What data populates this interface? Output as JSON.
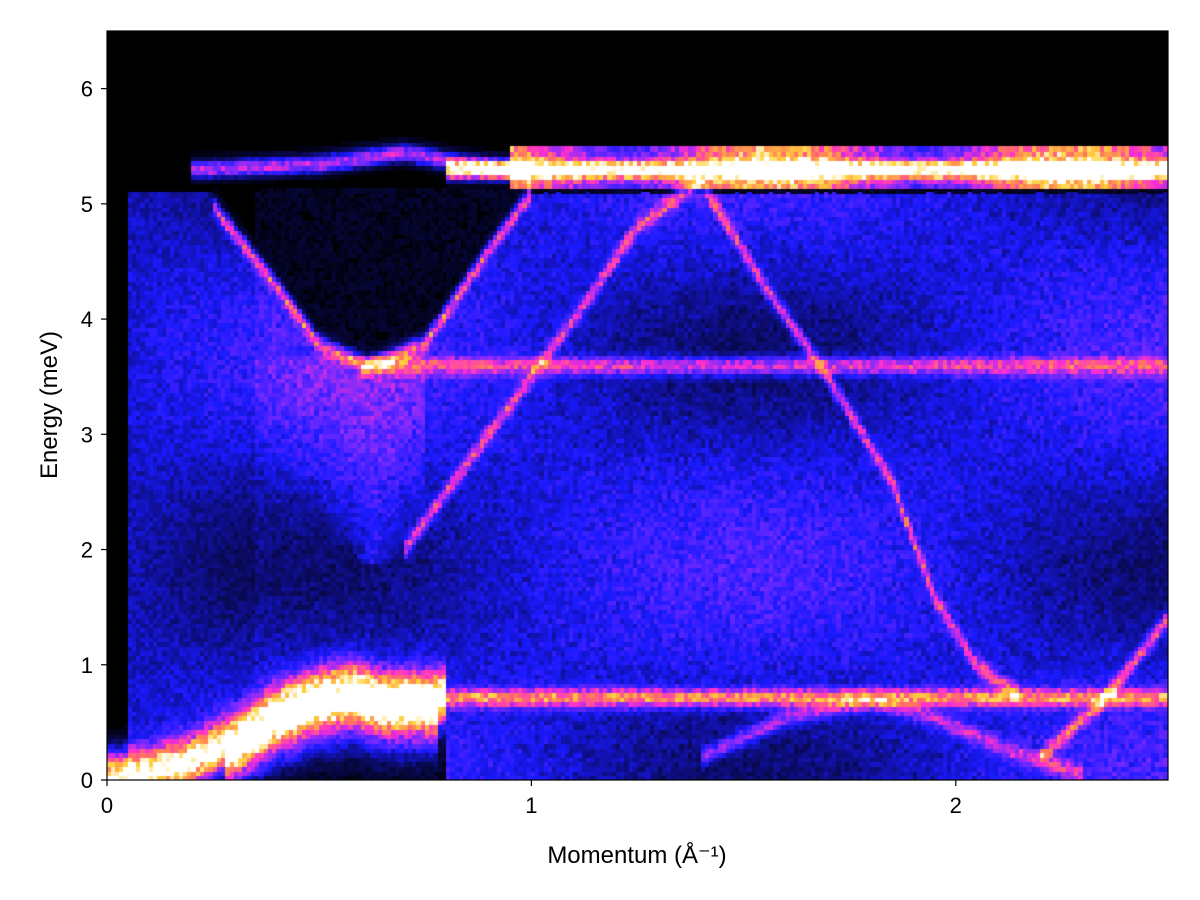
{
  "chart_data": {
    "type": "heatmap",
    "title": "",
    "xlabel": "Momentum (Å⁻¹)",
    "ylabel": "Energy (meV)",
    "xlim": [
      0,
      2.5
    ],
    "ylim": [
      0,
      6.5
    ],
    "x_ticks": [
      {
        "value": 0,
        "label": "0"
      },
      {
        "value": 1,
        "label": "1"
      },
      {
        "value": 2,
        "label": "2"
      }
    ],
    "y_ticks": [
      {
        "value": 0,
        "label": "0"
      },
      {
        "value": 1,
        "label": "1"
      },
      {
        "value": 2,
        "label": "2"
      },
      {
        "value": 3,
        "label": "3"
      },
      {
        "value": 4,
        "label": "4"
      },
      {
        "value": 5,
        "label": "5"
      },
      {
        "value": 6,
        "label": "6"
      }
    ],
    "grid": false,
    "colormap": [
      "#000000",
      "#0a0a55",
      "#1a1aff",
      "#7b2bff",
      "#ff2fd0",
      "#ff7a5a",
      "#ffd23c",
      "#ffffff"
    ],
    "features": [
      {
        "name": "acoustic-branch",
        "points": [
          [
            0.0,
            0.02
          ],
          [
            0.1,
            0.05
          ],
          [
            0.2,
            0.15
          ],
          [
            0.3,
            0.35
          ],
          [
            0.4,
            0.6
          ],
          [
            0.5,
            0.75
          ],
          [
            0.58,
            0.8
          ],
          [
            0.65,
            0.72
          ],
          [
            0.8,
            0.72
          ]
        ],
        "intensity": 1.0
      },
      {
        "name": "flat-band-low",
        "points": [
          [
            0.6,
            0.72
          ],
          [
            2.5,
            0.72
          ]
        ],
        "intensity": 0.55
      },
      {
        "name": "flat-band-top",
        "points": [
          [
            0.8,
            5.3
          ],
          [
            2.5,
            5.3
          ]
        ],
        "intensity": 1.0
      },
      {
        "name": "upper-dispersive",
        "points": [
          [
            0.2,
            5.3
          ],
          [
            0.5,
            5.35
          ],
          [
            0.7,
            5.45
          ],
          [
            0.85,
            5.35
          ],
          [
            1.0,
            5.28
          ]
        ],
        "intensity": 0.4
      },
      {
        "name": "lower-edge-of-top",
        "points": [
          [
            0.25,
            5.0
          ],
          [
            0.4,
            4.3
          ],
          [
            0.5,
            3.8
          ],
          [
            0.62,
            3.6
          ],
          [
            0.75,
            3.8
          ],
          [
            0.9,
            4.6
          ],
          [
            1.0,
            5.1
          ]
        ],
        "intensity": 0.4
      },
      {
        "name": "mid-flat-3p6",
        "points": [
          [
            0.6,
            3.6
          ],
          [
            2.5,
            3.6
          ]
        ],
        "intensity": 0.35
      },
      {
        "name": "diag-rising",
        "points": [
          [
            0.7,
            2.0
          ],
          [
            0.9,
            3.0
          ],
          [
            1.0,
            3.5
          ],
          [
            1.1,
            4.0
          ],
          [
            1.25,
            4.8
          ],
          [
            1.4,
            5.2
          ]
        ],
        "intensity": 0.35
      },
      {
        "name": "diag-falling",
        "points": [
          [
            1.4,
            5.2
          ],
          [
            1.55,
            4.3
          ],
          [
            1.7,
            3.5
          ],
          [
            1.85,
            2.6
          ],
          [
            1.95,
            1.6
          ],
          [
            2.05,
            1.0
          ],
          [
            2.15,
            0.75
          ]
        ],
        "intensity": 0.35
      },
      {
        "name": "low-hump",
        "points": [
          [
            1.4,
            0.2
          ],
          [
            1.6,
            0.55
          ],
          [
            1.8,
            0.7
          ],
          [
            1.95,
            0.55
          ],
          [
            2.1,
            0.3
          ],
          [
            2.3,
            0.05
          ]
        ],
        "intensity": 0.25
      },
      {
        "name": "low-right-rise",
        "points": [
          [
            2.2,
            0.2
          ],
          [
            2.35,
            0.7
          ],
          [
            2.5,
            1.4
          ]
        ],
        "intensity": 0.4
      }
    ]
  }
}
